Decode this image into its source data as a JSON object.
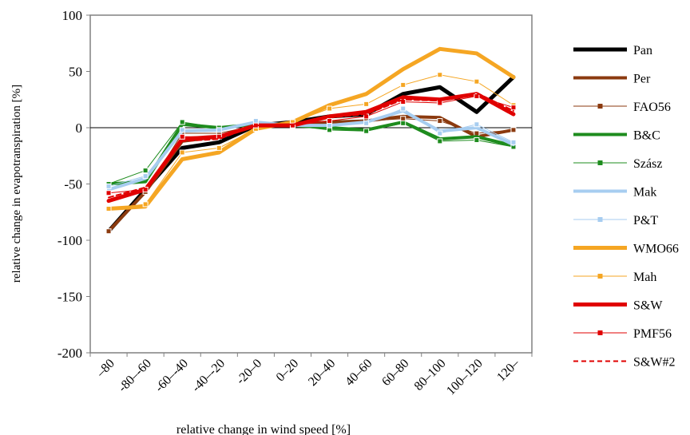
{
  "chart_data": {
    "type": "line",
    "title": "",
    "xlabel": "relative change in wind speed [%]",
    "ylabel": "relative change in evapotranspiration  [%]",
    "categories": [
      "–80",
      "-80–-60",
      "-60–-40",
      "-40–-20",
      "-20–0",
      "0–20",
      "20–40",
      "40–60",
      "60–80",
      "80–100",
      "100–120",
      "120–"
    ],
    "ylim": [
      -200,
      100
    ],
    "yticks": [
      100,
      50,
      0,
      -50,
      -100,
      -150,
      -200
    ],
    "grid": false,
    "legend_position": "right",
    "series": [
      {
        "name": "Pan",
        "color": "#000000",
        "width": 5,
        "marker": "none",
        "dash": "",
        "values": [
          -92,
          -55,
          -18,
          -13,
          2,
          5,
          10,
          12,
          30,
          36,
          14,
          45
        ]
      },
      {
        "name": "Per",
        "color": "#8B3A0F",
        "width": 4,
        "marker": "none",
        "dash": "",
        "values": [
          -92,
          -57,
          -12,
          -8,
          2,
          3,
          5,
          6,
          10,
          9,
          -8,
          -2
        ]
      },
      {
        "name": "FAO56",
        "color": "#8B3A0F",
        "width": 1,
        "marker": "square",
        "dash": "",
        "values": [
          -92,
          -57,
          -5,
          -5,
          2,
          3,
          5,
          6,
          8,
          6,
          -5,
          -2
        ]
      },
      {
        "name": "B&C",
        "color": "#1E8C1E",
        "width": 4,
        "marker": "none",
        "dash": "",
        "values": [
          -50,
          -48,
          3,
          0,
          3,
          2,
          0,
          -2,
          5,
          -10,
          -8,
          -16
        ]
      },
      {
        "name": "Szász",
        "color": "#1E8C1E",
        "width": 1,
        "marker": "square",
        "dash": "",
        "values": [
          -50,
          -38,
          5,
          0,
          4,
          2,
          -2,
          -3,
          4,
          -12,
          -11,
          -17
        ]
      },
      {
        "name": "Mak",
        "color": "#A7CDF0",
        "width": 4,
        "marker": "none",
        "dash": "",
        "values": [
          -55,
          -45,
          -3,
          -2,
          5,
          2,
          2,
          5,
          15,
          -3,
          0,
          -15
        ]
      },
      {
        "name": "P&T",
        "color": "#A7CDF0",
        "width": 1,
        "marker": "square",
        "dash": "",
        "values": [
          -52,
          -43,
          -2,
          -2,
          6,
          2,
          2,
          4,
          17,
          -5,
          3,
          -13
        ]
      },
      {
        "name": "WMO66",
        "color": "#F5A623",
        "width": 5,
        "marker": "none",
        "dash": "",
        "values": [
          -72,
          -70,
          -28,
          -22,
          -1,
          5,
          20,
          30,
          52,
          70,
          66,
          45
        ]
      },
      {
        "name": "Mah",
        "color": "#F5A623",
        "width": 1,
        "marker": "square",
        "dash": "",
        "values": [
          -72,
          -68,
          -22,
          -18,
          -1,
          5,
          17,
          21,
          38,
          47,
          41,
          20
        ]
      },
      {
        "name": "S&W",
        "color": "#E00000",
        "width": 5,
        "marker": "none",
        "dash": "",
        "values": [
          -65,
          -55,
          -10,
          -8,
          2,
          2,
          10,
          14,
          27,
          25,
          30,
          12
        ]
      },
      {
        "name": "PMF56",
        "color": "#E00000",
        "width": 1,
        "marker": "square",
        "dash": "",
        "values": [
          -58,
          -55,
          -8,
          -8,
          2,
          2,
          6,
          10,
          23,
          22,
          28,
          18
        ]
      },
      {
        "name": "S&W#2",
        "color": "#E00000",
        "width": 2,
        "marker": "none",
        "dash": "6,4",
        "values": [
          -62,
          -53,
          -12,
          -10,
          2,
          3,
          9,
          12,
          25,
          24,
          31,
          15
        ]
      }
    ]
  }
}
